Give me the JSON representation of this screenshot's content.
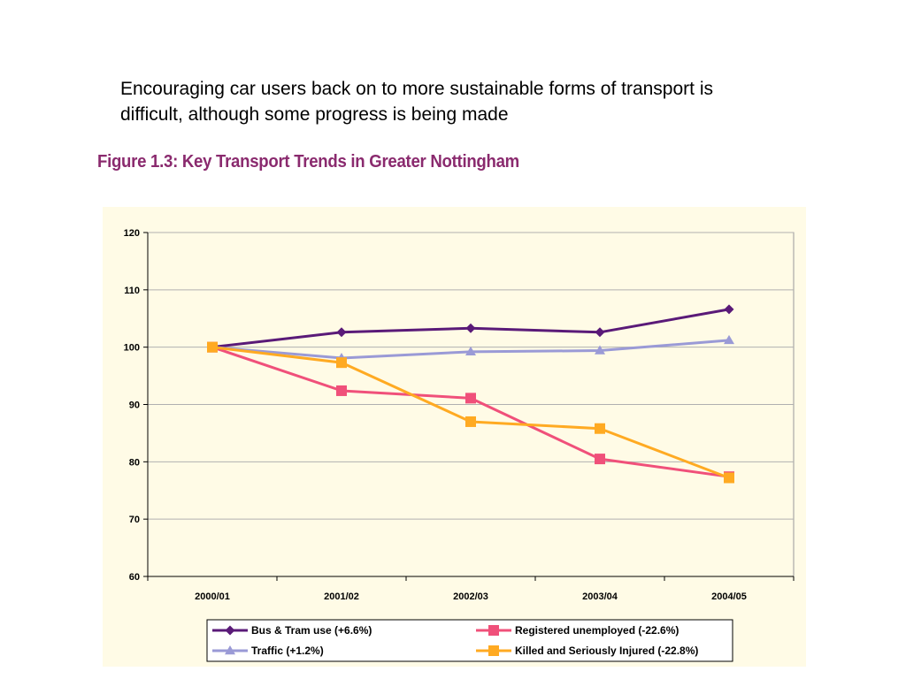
{
  "intro_text": "Encouraging car users back on to more sustainable forms of transport is difficult, although some progress is being made",
  "chart_data": {
    "type": "line",
    "title": "Figure 1.3: Key Transport Trends in Greater Nottingham",
    "categories": [
      "2000/01",
      "2001/02",
      "2002/03",
      "2003/04",
      "2004/05"
    ],
    "ylim": [
      60,
      120
    ],
    "yticks": [
      60,
      70,
      80,
      90,
      100,
      110,
      120
    ],
    "grid": true,
    "legend_position": "bottom",
    "background_color": "#fffbe6",
    "plot_background_color": "#fffbe6",
    "series": [
      {
        "name": "Bus & Tram use (+6.6%)",
        "values": [
          100,
          102.6,
          103.3,
          102.6,
          106.6
        ],
        "color": "#5a1a78",
        "marker": "diamond"
      },
      {
        "name": "Traffic (+1.2%)",
        "values": [
          100,
          98.1,
          99.2,
          99.4,
          101.2
        ],
        "color": "#9a9ad6",
        "marker": "triangle"
      },
      {
        "name": "Registered unemployed (-22.6%)",
        "values": [
          100,
          92.4,
          91.1,
          80.5,
          77.4
        ],
        "color": "#f0507a",
        "marker": "square"
      },
      {
        "name": "Killed and Seriously Injured (-22.8%)",
        "values": [
          100,
          97.3,
          87.0,
          85.8,
          77.2
        ],
        "color": "#ffaa22",
        "marker": "square"
      }
    ]
  }
}
